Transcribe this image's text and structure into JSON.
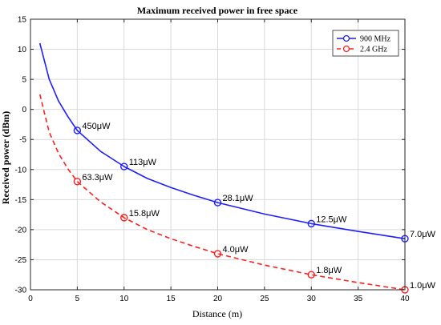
{
  "chart_data": {
    "type": "line",
    "title": "Maximum received power in free space",
    "xlabel": "Distance (m)",
    "ylabel": "Received power (dBm)",
    "xlim": [
      0,
      40
    ],
    "ylim": [
      -30,
      15
    ],
    "xticks": [
      0,
      5,
      10,
      15,
      20,
      25,
      30,
      35,
      40
    ],
    "yticks": [
      15,
      10,
      5,
      0,
      -5,
      -10,
      -15,
      -20,
      -25,
      -30
    ],
    "grid": true,
    "legend_position": "top-right",
    "series": [
      {
        "name": "900 MHz",
        "color": "#1f1fff",
        "line_style": "solid",
        "curve": [
          [
            1,
            11
          ],
          [
            2,
            5
          ],
          [
            3,
            1.4
          ],
          [
            4,
            -1.2
          ],
          [
            5,
            -3.5
          ],
          [
            7.5,
            -7
          ],
          [
            10,
            -9.5
          ],
          [
            12.5,
            -11.5
          ],
          [
            15,
            -13
          ],
          [
            17.5,
            -14.3
          ],
          [
            20,
            -15.5
          ],
          [
            25,
            -17.4
          ],
          [
            30,
            -19
          ],
          [
            35,
            -20.3
          ],
          [
            40,
            -21.5
          ]
        ],
        "markers": [
          {
            "x": 5,
            "y": -3.5,
            "label": "450μW"
          },
          {
            "x": 10,
            "y": -9.5,
            "label": "113μW"
          },
          {
            "x": 20,
            "y": -15.5,
            "label": "28.1μW"
          },
          {
            "x": 30,
            "y": -19,
            "label": "12.5μW"
          },
          {
            "x": 40,
            "y": -21.5,
            "label": "7.0μW"
          }
        ]
      },
      {
        "name": "2.4 GHz",
        "color": "#ff1f1f",
        "line_style": "dashed",
        "curve": [
          [
            1,
            2.5
          ],
          [
            2,
            -3.8
          ],
          [
            3,
            -7.3
          ],
          [
            4,
            -9.9
          ],
          [
            5,
            -12
          ],
          [
            7.5,
            -15.4
          ],
          [
            10,
            -18
          ],
          [
            12.5,
            -20
          ],
          [
            15,
            -21.5
          ],
          [
            17.5,
            -22.8
          ],
          [
            20,
            -24
          ],
          [
            25,
            -25.9
          ],
          [
            30,
            -27.5
          ],
          [
            35,
            -28.8
          ],
          [
            40,
            -30
          ]
        ],
        "markers": [
          {
            "x": 5,
            "y": -12,
            "label": "63.3μW"
          },
          {
            "x": 10,
            "y": -18,
            "label": "15.8μW"
          },
          {
            "x": 20,
            "y": -24,
            "label": "4.0μW"
          },
          {
            "x": 30,
            "y": -27.5,
            "label": "1.8μW"
          },
          {
            "x": 40,
            "y": -30,
            "label": "1.0μW"
          }
        ]
      }
    ]
  }
}
